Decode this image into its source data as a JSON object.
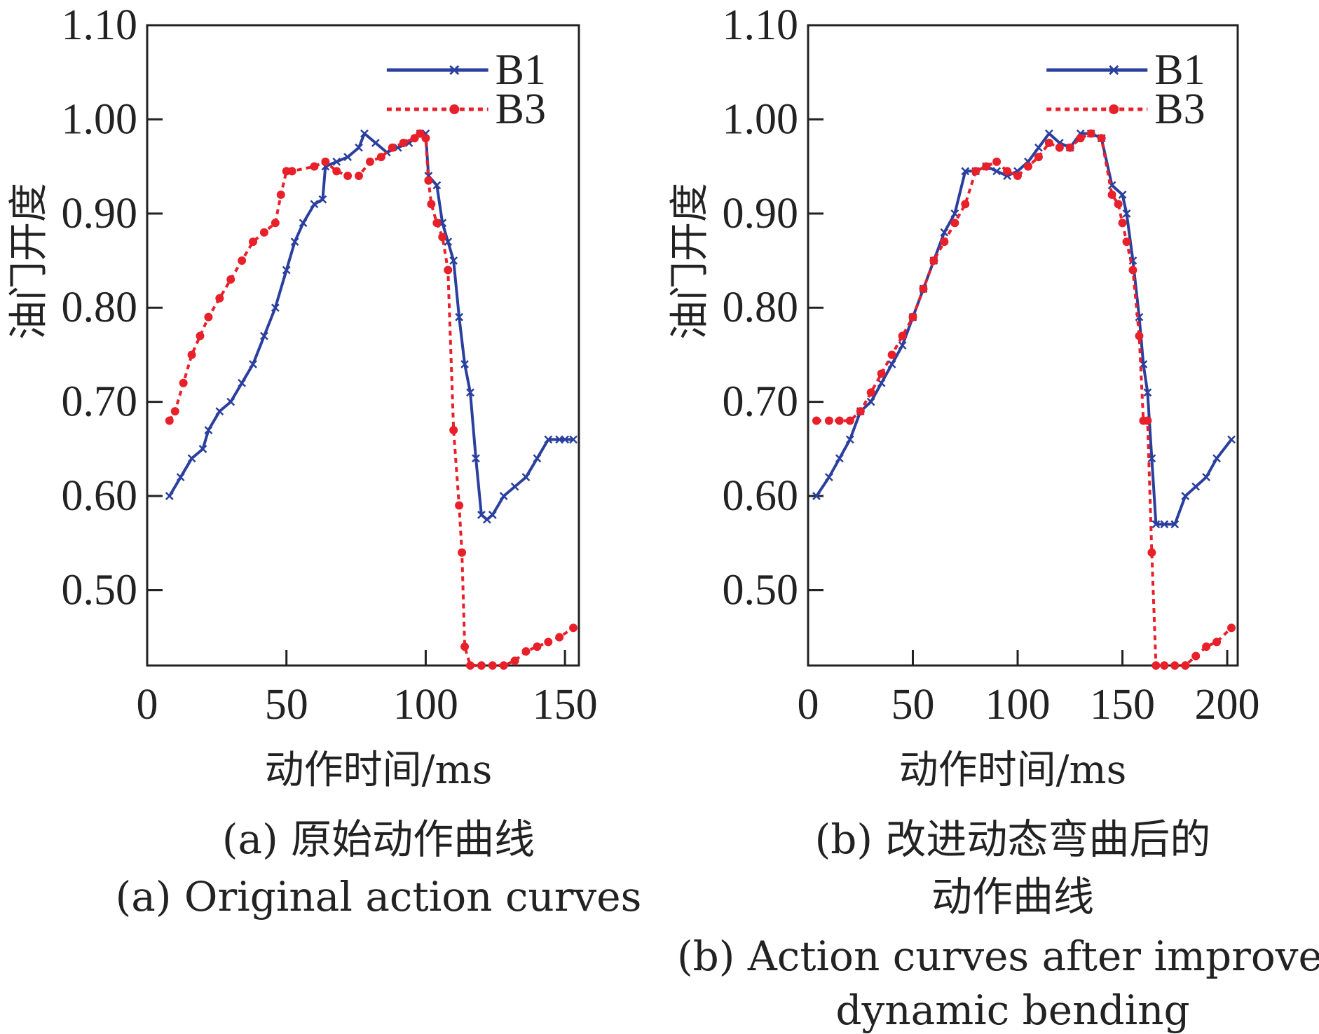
{
  "chart_data": [
    {
      "type": "line",
      "panel_caption_cn": "(a) 原始动作曲线",
      "panel_caption_en": "(a) Original action curves",
      "xlabel": "动作时间/ms",
      "ylabel": "油门开度",
      "xlim": [
        0,
        155
      ],
      "ylim": [
        0.42,
        1.1
      ],
      "xticks": [
        "0",
        "50",
        "100",
        "150"
      ],
      "xtick_values": [
        0,
        50,
        100,
        150
      ],
      "yticks": [
        "0.50",
        "0.60",
        "0.70",
        "0.80",
        "0.90",
        "1.00",
        "1.10"
      ],
      "ytick_values": [
        0.5,
        0.6,
        0.7,
        0.8,
        0.9,
        1.0,
        1.1
      ],
      "legend_position": "top-right",
      "grid": false,
      "series": [
        {
          "name": "B1",
          "color": "#2a3f9e",
          "style": "solid-x-markers",
          "x": [
            8,
            12,
            16,
            20,
            22,
            26,
            30,
            34,
            38,
            42,
            46,
            50,
            53,
            56,
            60,
            63,
            64,
            68,
            72,
            76,
            78,
            82,
            86,
            90,
            94,
            98,
            100,
            101,
            104,
            106,
            108,
            110,
            112,
            114,
            116,
            118,
            120,
            122,
            124,
            128,
            132,
            136,
            140,
            144,
            148,
            150,
            153
          ],
          "y": [
            0.6,
            0.62,
            0.64,
            0.65,
            0.67,
            0.69,
            0.7,
            0.72,
            0.74,
            0.77,
            0.8,
            0.84,
            0.87,
            0.89,
            0.91,
            0.915,
            0.95,
            0.955,
            0.96,
            0.97,
            0.985,
            0.975,
            0.965,
            0.97,
            0.975,
            0.985,
            0.985,
            0.94,
            0.93,
            0.89,
            0.87,
            0.85,
            0.79,
            0.74,
            0.71,
            0.64,
            0.58,
            0.575,
            0.58,
            0.6,
            0.61,
            0.62,
            0.64,
            0.66,
            0.66,
            0.66,
            0.66
          ]
        },
        {
          "name": "B3",
          "color": "#e8202a",
          "style": "dotted-dot-markers",
          "x": [
            8,
            10,
            13,
            16,
            19,
            22,
            26,
            30,
            34,
            38,
            42,
            46,
            48,
            50,
            52,
            60,
            64,
            68,
            72,
            76,
            80,
            84,
            88,
            92,
            96,
            98,
            100,
            101,
            102,
            104,
            106,
            108,
            110,
            112,
            113,
            114,
            116,
            120,
            124,
            128,
            132,
            136,
            140,
            144,
            148,
            153
          ],
          "y": [
            0.68,
            0.69,
            0.72,
            0.75,
            0.77,
            0.79,
            0.81,
            0.83,
            0.85,
            0.87,
            0.88,
            0.89,
            0.92,
            0.945,
            0.945,
            0.95,
            0.955,
            0.945,
            0.94,
            0.94,
            0.955,
            0.96,
            0.97,
            0.975,
            0.98,
            0.985,
            0.98,
            0.935,
            0.91,
            0.89,
            0.875,
            0.84,
            0.67,
            0.59,
            0.54,
            0.44,
            0.42,
            0.42,
            0.42,
            0.42,
            0.425,
            0.435,
            0.44,
            0.445,
            0.45,
            0.46
          ]
        }
      ]
    },
    {
      "type": "line",
      "panel_caption_cn": "(b) 改进动态弯曲后的动作曲线",
      "panel_caption_cn_line1": "(b) 改进动态弯曲后的",
      "panel_caption_cn_line2": "动作曲线",
      "panel_caption_en_line1": "(b) Action curves after improved",
      "panel_caption_en_line2": "dynamic bending",
      "xlabel": "动作时间/ms",
      "ylabel": "油门开度",
      "xlim": [
        0,
        205
      ],
      "ylim": [
        0.42,
        1.1
      ],
      "xticks": [
        "0",
        "50",
        "100",
        "150",
        "200"
      ],
      "xtick_values": [
        0,
        50,
        100,
        150,
        200
      ],
      "yticks": [
        "0.50",
        "0.60",
        "0.70",
        "0.80",
        "0.90",
        "1.00",
        "1.10"
      ],
      "ytick_values": [
        0.5,
        0.6,
        0.7,
        0.8,
        0.9,
        1.0,
        1.1
      ],
      "legend_position": "top-right",
      "grid": false,
      "series": [
        {
          "name": "B1",
          "color": "#2a3f9e",
          "style": "solid-x-markers",
          "x": [
            4,
            10,
            15,
            20,
            25,
            30,
            35,
            40,
            45,
            50,
            55,
            60,
            65,
            70,
            75,
            80,
            85,
            90,
            95,
            100,
            105,
            110,
            115,
            120,
            125,
            130,
            135,
            140,
            145,
            150,
            152,
            155,
            158,
            160,
            162,
            164,
            166,
            170,
            175,
            180,
            185,
            190,
            195,
            202
          ],
          "y": [
            0.6,
            0.62,
            0.64,
            0.66,
            0.69,
            0.7,
            0.72,
            0.74,
            0.76,
            0.79,
            0.82,
            0.85,
            0.88,
            0.9,
            0.945,
            0.945,
            0.95,
            0.945,
            0.94,
            0.945,
            0.955,
            0.97,
            0.985,
            0.975,
            0.97,
            0.985,
            0.985,
            0.98,
            0.93,
            0.92,
            0.9,
            0.85,
            0.79,
            0.74,
            0.71,
            0.64,
            0.57,
            0.57,
            0.57,
            0.6,
            0.61,
            0.62,
            0.64,
            0.66
          ]
        },
        {
          "name": "B3",
          "color": "#e8202a",
          "style": "dotted-dot-markers",
          "x": [
            4,
            10,
            15,
            20,
            25,
            30,
            35,
            40,
            45,
            50,
            55,
            60,
            65,
            70,
            75,
            80,
            85,
            90,
            95,
            100,
            105,
            110,
            115,
            120,
            125,
            130,
            135,
            140,
            145,
            148,
            150,
            152,
            155,
            158,
            160,
            162,
            164,
            166,
            170,
            175,
            180,
            185,
            190,
            195,
            202
          ],
          "y": [
            0.68,
            0.68,
            0.68,
            0.68,
            0.69,
            0.71,
            0.73,
            0.75,
            0.77,
            0.79,
            0.82,
            0.85,
            0.87,
            0.89,
            0.91,
            0.945,
            0.95,
            0.955,
            0.945,
            0.94,
            0.95,
            0.96,
            0.975,
            0.97,
            0.97,
            0.98,
            0.985,
            0.98,
            0.92,
            0.91,
            0.89,
            0.87,
            0.84,
            0.77,
            0.68,
            0.68,
            0.54,
            0.42,
            0.42,
            0.42,
            0.42,
            0.43,
            0.44,
            0.445,
            0.46
          ]
        }
      ]
    }
  ]
}
